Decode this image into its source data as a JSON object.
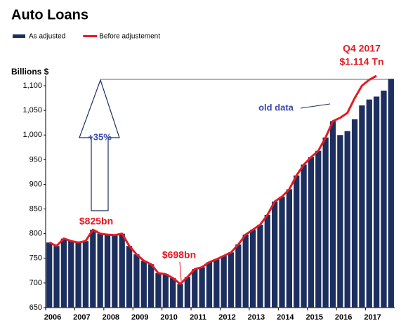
{
  "chart_data": {
    "type": "bar",
    "title": "Auto Loans",
    "y_label": "Billions $",
    "categories": [
      "2006",
      null,
      null,
      null,
      "2007",
      null,
      null,
      null,
      "2008",
      null,
      null,
      null,
      "2009",
      null,
      null,
      null,
      "2010",
      null,
      null,
      null,
      "2011",
      null,
      null,
      null,
      "2012",
      null,
      null,
      null,
      "2013",
      null,
      null,
      null,
      "2014",
      null,
      null,
      null,
      "2015",
      null,
      null,
      null,
      "2016",
      null,
      null,
      null,
      "2017",
      null,
      null,
      null
    ],
    "series": [
      {
        "name": "As adjusted",
        "color": "#1c2f5e",
        "type": "bar",
        "values": [
          782,
          775,
          790,
          785,
          782,
          785,
          808,
          800,
          798,
          797,
          800,
          775,
          758,
          745,
          738,
          720,
          718,
          710,
          698,
          712,
          728,
          732,
          742,
          748,
          755,
          762,
          778,
          798,
          808,
          818,
          838,
          865,
          875,
          890,
          918,
          940,
          955,
          968,
          995,
          1028,
          1000,
          1008,
          1032,
          1060,
          1072,
          1078,
          1090,
          1114
        ]
      },
      {
        "name": "Before adjustement",
        "color": "#e31b23",
        "type": "line",
        "values": [
          782,
          775,
          790,
          785,
          782,
          785,
          808,
          800,
          798,
          797,
          800,
          775,
          758,
          745,
          738,
          720,
          718,
          710,
          698,
          712,
          728,
          732,
          742,
          748,
          755,
          762,
          778,
          798,
          808,
          818,
          838,
          865,
          875,
          890,
          918,
          940,
          955,
          968,
          995,
          1028,
          1035,
          1045,
          1075,
          1100,
          1112,
          1120,
          null,
          null
        ]
      }
    ],
    "ylim": [
      650,
      1120
    ],
    "yticks": [
      650,
      700,
      750,
      800,
      850,
      900,
      950,
      {
        "value": 1000,
        "label": "1,000"
      },
      {
        "value": 1050,
        "label": "1,050"
      },
      {
        "value": 1100,
        "label": "1,100"
      }
    ],
    "annotations": [
      "$825bn",
      "$698bn",
      "old data",
      "Q4 2017",
      "$1.114 Tn",
      "+35%"
    ]
  }
}
